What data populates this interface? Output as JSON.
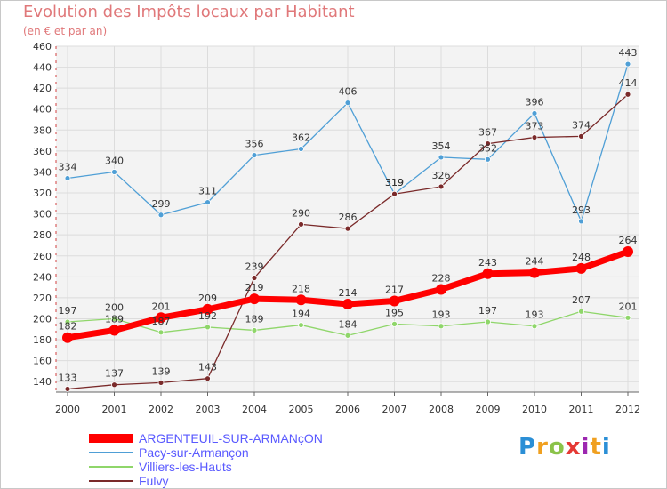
{
  "header": {
    "title": "Evolution des Impôts locaux par Habitant",
    "subtitle": "(en € et par an)"
  },
  "brand": {
    "letters": [
      "P",
      "r",
      "o",
      "x",
      "i",
      "t",
      "i"
    ]
  },
  "colors": {
    "title": "#e0787a",
    "axis_red": "#d04040",
    "legend_text": "#5a5aff",
    "brand": [
      "#2b8fd6",
      "#f0a020",
      "#8bc34a",
      "#e53935",
      "#9c27b0",
      "#f0a020",
      "#2b8fd6"
    ]
  },
  "chart_data": {
    "type": "line",
    "title": "Evolution des Impôts locaux par Habitant",
    "subtitle": "(en € et par an)",
    "x": [
      "2000",
      "2001",
      "2002",
      "2003",
      "2004",
      "2005",
      "2006",
      "2007",
      "2008",
      "2009",
      "2010",
      "2011",
      "2012"
    ],
    "ylim": [
      130,
      460
    ],
    "yticks": [
      140,
      160,
      180,
      200,
      220,
      240,
      260,
      280,
      300,
      320,
      340,
      360,
      380,
      400,
      420,
      440,
      460
    ],
    "grid": true,
    "legend_position": "bottom-left",
    "series": [
      {
        "name": "ARGENTEUIL-SUR-ARMANçON",
        "color": "#ff0000",
        "width": 7,
        "point_radius": 6,
        "values": [
          182,
          189,
          201,
          209,
          219,
          218,
          214,
          217,
          228,
          243,
          244,
          248,
          264
        ]
      },
      {
        "name": "Pacy-sur-Armançon",
        "color": "#4f9fd6",
        "width": 1.3,
        "point_radius": 3,
        "values": [
          334,
          340,
          299,
          311,
          356,
          362,
          406,
          319,
          354,
          352,
          396,
          293,
          443
        ]
      },
      {
        "name": "Villiers-les-Hauts",
        "color": "#8fd66a",
        "width": 1.3,
        "point_radius": 3,
        "values": [
          197,
          200,
          187,
          192,
          189,
          194,
          184,
          195,
          193,
          197,
          193,
          207,
          201
        ]
      },
      {
        "name": "Fulvy",
        "color": "#7a2a2a",
        "width": 1.3,
        "point_radius": 3,
        "values": [
          133,
          137,
          139,
          143,
          239,
          290,
          286,
          319,
          326,
          367,
          373,
          374,
          414
        ]
      }
    ]
  }
}
